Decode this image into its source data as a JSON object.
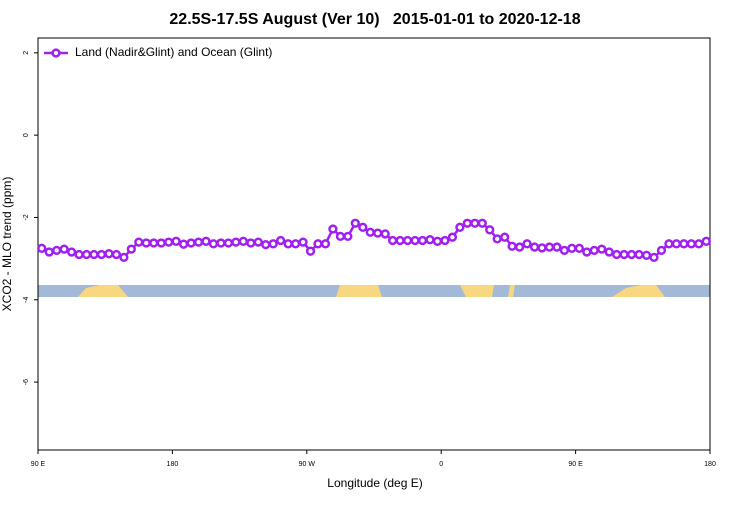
{
  "chart_data": {
    "type": "line",
    "title": "22.5S-17.5S August (Ver 10)   2015-01-01 to 2020-12-18",
    "xlabel": "Longitude (deg E)",
    "ylabel": "XCO2 - MLO trend (ppm)",
    "x": [
      92.5,
      97.5,
      102.5,
      107.5,
      112.5,
      117.5,
      122.5,
      127.5,
      132.5,
      137.5,
      142.5,
      147.5,
      152.5,
      157.5,
      162.5,
      167.5,
      172.5,
      177.5,
      182.5,
      187.5,
      192.5,
      197.5,
      202.5,
      207.5,
      212.5,
      217.5,
      222.5,
      227.5,
      232.5,
      237.5,
      242.5,
      247.5,
      252.5,
      257.5,
      262.5,
      267.5,
      272.5,
      277.5,
      282.5,
      287.5,
      292.5,
      297.5,
      302.5,
      307.5,
      312.5,
      317.5,
      322.5,
      327.5,
      332.5,
      337.5,
      342.5,
      347.5,
      352.5,
      357.5,
      362.5,
      367.5,
      372.5,
      377.5,
      382.5,
      387.5,
      392.5,
      397.5,
      402.5,
      407.5,
      412.5,
      417.5,
      422.5,
      427.5,
      432.5,
      437.5,
      442.5,
      447.5,
      452.5,
      457.5,
      462.5,
      467.5,
      472.5,
      477.5,
      482.5,
      487.5,
      492.5,
      497.5,
      502.5,
      507.5,
      512.5,
      517.5,
      522.5,
      527.5,
      532.5,
      537.5
    ],
    "series": [
      {
        "name": "Land (Nadir&Glint) and Ocean (Glint)",
        "color": "#a020f0",
        "values": [
          -2.75,
          -2.84,
          -2.8,
          -2.77,
          -2.84,
          -2.9,
          -2.9,
          -2.9,
          -2.9,
          -2.88,
          -2.9,
          -2.97,
          -2.77,
          -2.6,
          -2.62,
          -2.62,
          -2.62,
          -2.6,
          -2.58,
          -2.65,
          -2.62,
          -2.6,
          -2.58,
          -2.64,
          -2.62,
          -2.62,
          -2.6,
          -2.58,
          -2.62,
          -2.6,
          -2.66,
          -2.64,
          -2.56,
          -2.64,
          -2.64,
          -2.6,
          -2.82,
          -2.64,
          -2.64,
          -2.28,
          -2.46,
          -2.46,
          -2.14,
          -2.24,
          -2.36,
          -2.38,
          -2.4,
          -2.56,
          -2.56,
          -2.56,
          -2.56,
          -2.56,
          -2.54,
          -2.58,
          -2.56,
          -2.48,
          -2.24,
          -2.14,
          -2.14,
          -2.14,
          -2.3,
          -2.52,
          -2.48,
          -2.7,
          -2.72,
          -2.64,
          -2.72,
          -2.74,
          -2.72,
          -2.72,
          -2.8,
          -2.75,
          -2.75,
          -2.84,
          -2.8,
          -2.77,
          -2.84,
          -2.9,
          -2.9,
          -2.9,
          -2.9,
          -2.92,
          -2.97,
          -2.8,
          -2.64,
          -2.64,
          -2.64,
          -2.64,
          -2.64,
          -2.58
        ]
      }
    ],
    "xlim": [
      90,
      540
    ],
    "xticks": [
      {
        "value": 90,
        "label": "90 E"
      },
      {
        "value": 180,
        "label": "180"
      },
      {
        "value": 270,
        "label": "90 W"
      },
      {
        "value": 360,
        "label": "0"
      },
      {
        "value": 450,
        "label": "90 E"
      },
      {
        "value": 540,
        "label": "180"
      }
    ],
    "ylim": [
      -7.65,
      2.36
    ],
    "yticks": [
      -6,
      -4,
      -2,
      0,
      2
    ],
    "legend": "top-left"
  }
}
